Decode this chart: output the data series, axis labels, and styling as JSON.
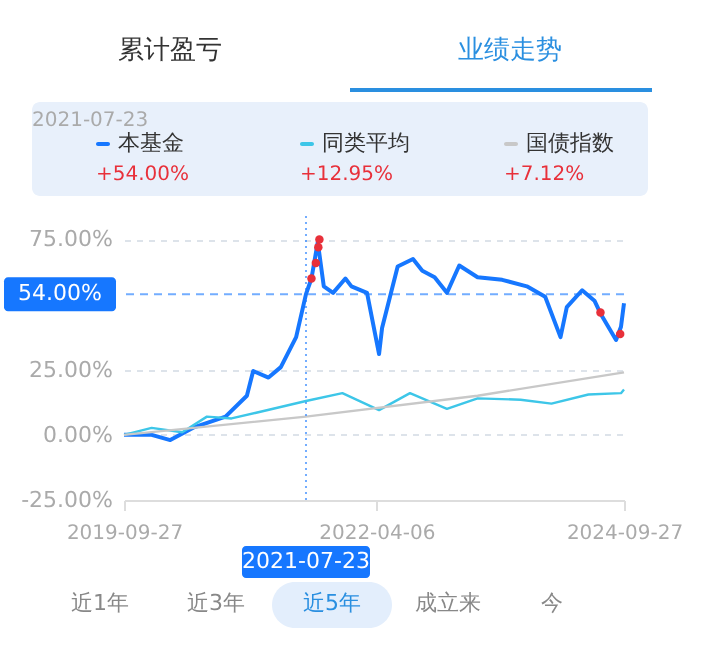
{
  "chart_data": {
    "type": "line",
    "annotations": [
      "累计盈亏",
      "业绩走势",
      "近1年",
      "近3年",
      "近5年",
      "成立来",
      "今",
      "+54.00%",
      "+12.95%",
      "+7.12%"
    ],
    "series": [
      {
        "name": "本基金",
        "color": "#1677ff",
        "x": [
          "2019-09-27",
          "2020-01-06",
          "2020-03-14",
          "2020-06-11",
          "2020-10-02",
          "2020-12-19",
          "2021-01-11",
          "2021-03-08",
          "2021-04-22",
          "2021-06-17",
          "2021-07-23",
          "2021-08-12",
          "2021-09-04",
          "2021-09-26",
          "2021-10-30",
          "2021-12-14",
          "2022-01-05",
          "2022-03-03",
          "2022-04-16",
          "2022-04-27",
          "2022-06-23",
          "2022-08-18",
          "2022-09-21",
          "2022-11-05",
          "2022-12-20",
          "2023-02-03",
          "2023-04-11",
          "2023-07-10",
          "2023-10-08",
          "2023-12-14",
          "2024-02-08",
          "2024-03-02",
          "2024-04-27",
          "2024-06-11",
          "2024-07-03",
          "2024-08-29",
          "2024-09-16",
          "2024-09-27"
        ],
        "values": [
          0,
          0,
          -2,
          3,
          7,
          15,
          24.5,
          22,
          26,
          37.5,
          54,
          60,
          74,
          57,
          54.5,
          60,
          57,
          54.5,
          31,
          41,
          64.6,
          67.5,
          63,
          60.5,
          54.5,
          65,
          60.5,
          59.5,
          57,
          53,
          37.5,
          49,
          55.5,
          51.5,
          46.6,
          36.4,
          41.5,
          50.5
        ]
      },
      {
        "name": "同类平均",
        "color": "#3dc6e8",
        "x": [
          "2019-09-27",
          "2020-01-06",
          "2020-04-27",
          "2020-07-26",
          "2020-10-24",
          "2021-01-22",
          "2021-07-23",
          "2021-12-03",
          "2022-04-16",
          "2022-08-07",
          "2022-12-20",
          "2023-04-11",
          "2023-09-15",
          "2024-01-06",
          "2024-05-20",
          "2024-09-16",
          "2024-09-27"
        ],
        "values": [
          0,
          2.7,
          1,
          7,
          6.3,
          8.5,
          13,
          16,
          9.5,
          16,
          10,
          14,
          13.5,
          12,
          15.5,
          16,
          17.4
        ]
      },
      {
        "name": "国债指数",
        "color": "#c8c8c8",
        "x": [
          "2019-09-27",
          "2021-07-23",
          "2023-04-11",
          "2024-09-27"
        ],
        "values": [
          0,
          7,
          15,
          24
        ]
      },
      {
        "type": "scatter",
        "marker": "circle",
        "color": "#e8303a",
        "x": [
          "2021-08-12",
          "2021-08-28",
          "2021-09-06",
          "2021-09-10",
          "2024-07-03",
          "2024-09-13"
        ],
        "values": [
          60,
          66,
          72,
          75,
          47,
          38.7
        ]
      }
    ],
    "xlim": [
      "2019-09-27",
      "2024-09-27"
    ],
    "xticks": [
      "2019-09-27",
      "2022-04-06",
      "2024-09-27"
    ],
    "ylim": [
      -25,
      84
    ],
    "yticks": [
      {
        "value": -25,
        "label": "-25.00%"
      },
      {
        "value": 0,
        "label": "0.00%"
      },
      {
        "value": 25,
        "label": "25.00%"
      },
      {
        "value": 75,
        "label": "75.00%"
      }
    ],
    "ref_lines": [
      {
        "axis": "y",
        "value": 54,
        "label": "54.00%",
        "color": "#1677ff",
        "line_style": "dashed"
      },
      {
        "axis": "x",
        "value": "2021-07-23",
        "label": "2021-07-23",
        "color": "#1677ff",
        "line_style": "dotted"
      }
    ],
    "grid": "y",
    "legend": "top",
    "marker": "none",
    "line_style": "solid"
  }
}
